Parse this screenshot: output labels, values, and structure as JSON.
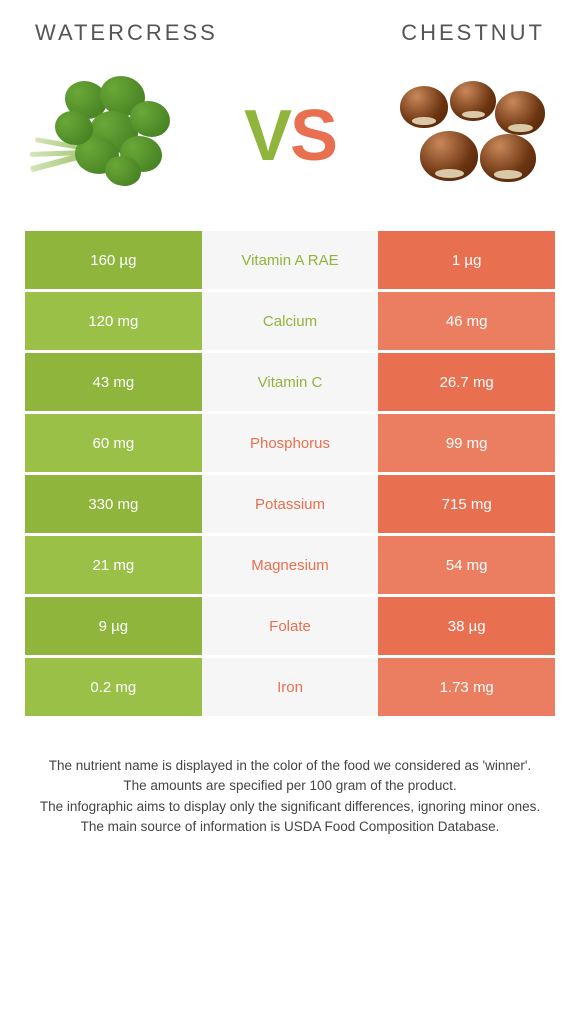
{
  "headers": {
    "left": "Watercress",
    "right": "Chestnut"
  },
  "vs": {
    "v": "V",
    "s": "S"
  },
  "colors": {
    "green": "#8fb53d",
    "green_alt": "#9bc048",
    "orange": "#e87050",
    "orange_alt": "#eb7e60",
    "mid_bg": "#f6f6f6"
  },
  "rows": [
    {
      "left": "160 µg",
      "mid": "Vitamin A RAE",
      "right": "1 µg",
      "winner": "left"
    },
    {
      "left": "120 mg",
      "mid": "Calcium",
      "right": "46 mg",
      "winner": "left"
    },
    {
      "left": "43 mg",
      "mid": "Vitamin C",
      "right": "26.7 mg",
      "winner": "left"
    },
    {
      "left": "60 mg",
      "mid": "Phosphorus",
      "right": "99 mg",
      "winner": "right"
    },
    {
      "left": "330 mg",
      "mid": "Potassium",
      "right": "715 mg",
      "winner": "right"
    },
    {
      "left": "21 mg",
      "mid": "Magnesium",
      "right": "54 mg",
      "winner": "right"
    },
    {
      "left": "9 µg",
      "mid": "Folate",
      "right": "38 µg",
      "winner": "right"
    },
    {
      "left": "0.2 mg",
      "mid": "Iron",
      "right": "1.73 mg",
      "winner": "right"
    }
  ],
  "footer": {
    "l1": "The nutrient name is displayed in the color of the food we considered as 'winner'.",
    "l2": "The amounts are specified per 100 gram of the product.",
    "l3": "The infographic aims to display only the significant differences, ignoring minor ones.",
    "l4": "The main source of information is USDA Food Composition Database."
  }
}
